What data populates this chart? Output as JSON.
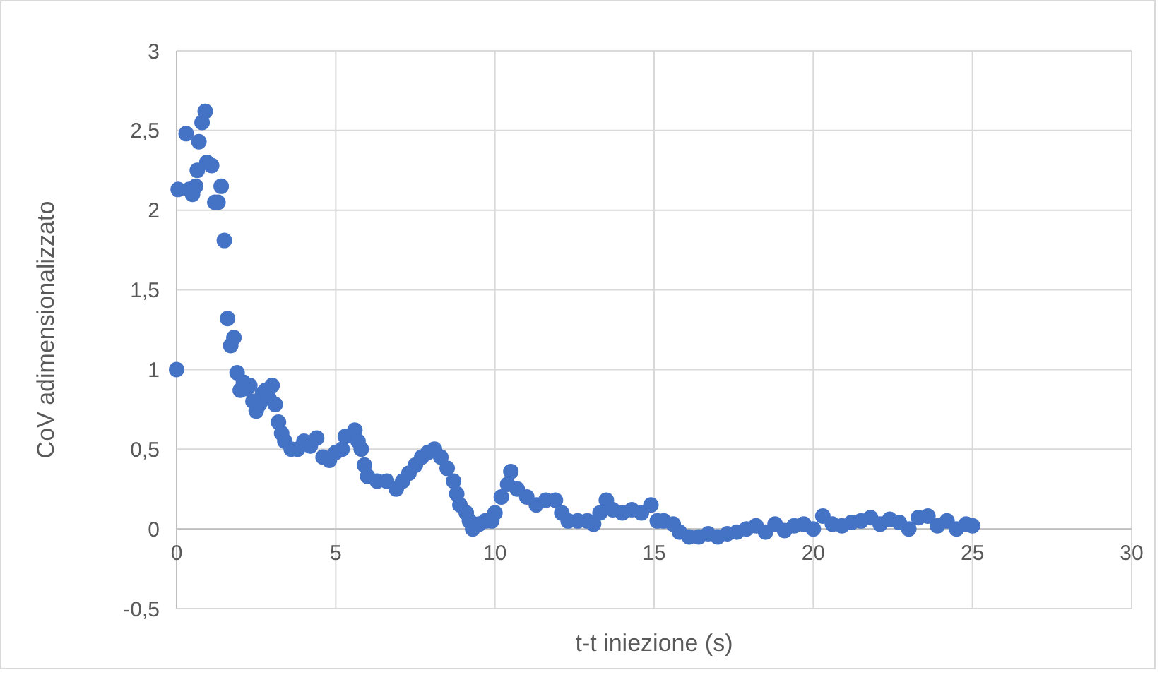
{
  "chart_data": {
    "type": "scatter",
    "xlabel": "t-t iniezione (s)",
    "ylabel": "CoV adimensionalizzato",
    "xlim": [
      0,
      30
    ],
    "ylim": [
      -0.5,
      3
    ],
    "xticks": [
      0,
      5,
      10,
      15,
      20,
      25,
      30
    ],
    "yticks": [
      {
        "value": -0.5,
        "label": "-0,5"
      },
      0,
      {
        "value": 0.5,
        "label": "0,5"
      },
      1,
      {
        "value": 1.5,
        "label": "1,5"
      },
      2,
      {
        "value": 2.5,
        "label": "2,5"
      },
      3
    ],
    "grid": true,
    "marker": "circle",
    "series": [
      {
        "color": "#4472c4",
        "x": [
          0,
          0.05,
          0.3,
          0.4,
          0.5,
          0.6,
          0.65,
          0.7,
          0.8,
          0.9,
          0.95,
          1.1,
          1.2,
          1.3,
          1.4,
          1.5,
          1.6,
          1.7,
          1.8,
          1.9,
          2.0,
          2.1,
          2.2,
          2.3,
          2.4,
          2.5,
          2.6,
          2.7,
          2.8,
          2.9,
          3.0,
          3.1,
          3.2,
          3.3,
          3.4,
          3.6,
          3.8,
          4.0,
          4.2,
          4.4,
          4.6,
          4.8,
          5.0,
          5.2,
          5.3,
          5.6,
          5.7,
          5.8,
          5.9,
          6.0,
          6.3,
          6.6,
          6.9,
          7.1,
          7.3,
          7.5,
          7.7,
          7.9,
          8.1,
          8.3,
          8.5,
          8.7,
          8.8,
          8.9,
          9.1,
          9.2,
          9.3,
          9.5,
          9.7,
          9.9,
          10.0,
          10.2,
          10.4,
          10.5,
          10.7,
          11.0,
          11.3,
          11.6,
          11.9,
          12.1,
          12.3,
          12.6,
          12.9,
          13.1,
          13.3,
          13.5,
          13.7,
          14.0,
          14.3,
          14.6,
          14.9,
          15.1,
          15.3,
          15.6,
          15.8,
          16.1,
          16.4,
          16.7,
          17.0,
          17.3,
          17.6,
          17.9,
          18.2,
          18.5,
          18.8,
          19.1,
          19.4,
          19.7,
          20.0,
          20.3,
          20.6,
          20.9,
          21.2,
          21.5,
          21.8,
          22.1,
          22.4,
          22.7,
          23.0,
          23.3,
          23.6,
          23.9,
          24.2,
          24.5,
          24.8,
          25.0
        ],
        "values": [
          1.0,
          2.13,
          2.48,
          2.13,
          2.1,
          2.15,
          2.25,
          2.43,
          2.55,
          2.62,
          2.3,
          2.28,
          2.05,
          2.05,
          2.15,
          1.81,
          1.32,
          1.15,
          1.2,
          0.98,
          0.87,
          0.92,
          0.88,
          0.9,
          0.8,
          0.74,
          0.78,
          0.85,
          0.87,
          0.82,
          0.9,
          0.78,
          0.67,
          0.6,
          0.55,
          0.5,
          0.5,
          0.55,
          0.52,
          0.57,
          0.45,
          0.43,
          0.48,
          0.5,
          0.58,
          0.62,
          0.55,
          0.5,
          0.4,
          0.33,
          0.3,
          0.3,
          0.25,
          0.3,
          0.35,
          0.4,
          0.45,
          0.48,
          0.5,
          0.45,
          0.38,
          0.3,
          0.22,
          0.15,
          0.1,
          0.05,
          0.0,
          0.03,
          0.05,
          0.05,
          0.1,
          0.2,
          0.28,
          0.36,
          0.25,
          0.2,
          0.15,
          0.18,
          0.18,
          0.1,
          0.05,
          0.05,
          0.05,
          0.03,
          0.1,
          0.18,
          0.12,
          0.1,
          0.12,
          0.1,
          0.15,
          0.05,
          0.05,
          0.03,
          -0.02,
          -0.05,
          -0.05,
          -0.03,
          -0.05,
          -0.03,
          -0.02,
          0.0,
          0.02,
          -0.02,
          0.03,
          -0.01,
          0.02,
          0.03,
          0.0,
          0.08,
          0.03,
          0.02,
          0.04,
          0.05,
          0.07,
          0.03,
          0.06,
          0.04,
          0.0,
          0.07,
          0.08,
          0.02,
          0.05,
          0.0,
          0.03,
          0.02
        ]
      }
    ]
  }
}
